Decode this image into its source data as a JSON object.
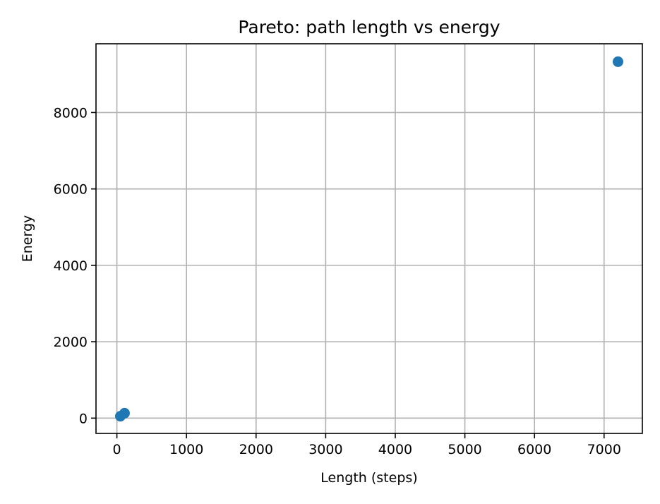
{
  "chart_data": {
    "type": "scatter",
    "title": "Pareto: path length vs energy",
    "xlabel": "Length (steps)",
    "ylabel": "Energy",
    "xlim": [
      -300,
      7550
    ],
    "ylim": [
      -400,
      9800
    ],
    "xticks": [
      0,
      1000,
      2000,
      3000,
      4000,
      5000,
      6000,
      7000
    ],
    "yticks": [
      0,
      2000,
      4000,
      6000,
      8000
    ],
    "grid": true,
    "color": "#1f77b4",
    "points": [
      {
        "x": 50,
        "y": 50
      },
      {
        "x": 110,
        "y": 130
      },
      {
        "x": 7200,
        "y": 9330
      }
    ]
  }
}
